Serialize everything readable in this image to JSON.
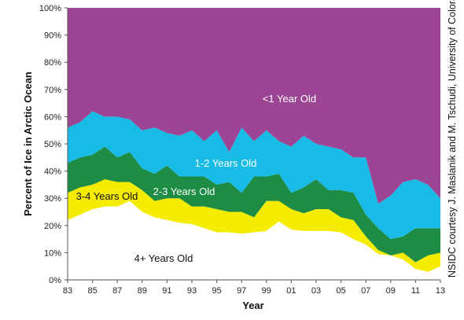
{
  "chart_data": {
    "type": "area",
    "stacked": true,
    "xlabel": "Year",
    "ylabel": "Percent of Ice in Arctic Ocean",
    "ylim": [
      0,
      100
    ],
    "xlim": [
      1983,
      2013
    ],
    "x_tick_labels": [
      "83",
      "85",
      "87",
      "89",
      "91",
      "93",
      "95",
      "97",
      "99",
      "01",
      "03",
      "05",
      "07",
      "09",
      "11",
      "13"
    ],
    "y_tick_labels": [
      "0%",
      "10%",
      "20%",
      "30%",
      "40%",
      "50%",
      "60%",
      "70%",
      "80%",
      "90%",
      "100%"
    ],
    "x": [
      1983,
      1984,
      1985,
      1986,
      1987,
      1988,
      1989,
      1990,
      1991,
      1992,
      1993,
      1994,
      1995,
      1996,
      1997,
      1998,
      1999,
      2000,
      2001,
      2002,
      2003,
      2004,
      2005,
      2006,
      2007,
      2008,
      2009,
      2010,
      2011,
      2012,
      2013
    ],
    "boundaries": {
      "4_plus_top": [
        22,
        24,
        26,
        27,
        27,
        29,
        25,
        23,
        22,
        21,
        20.5,
        19,
        17.5,
        17.5,
        17,
        17.5,
        18,
        21.5,
        18.5,
        18,
        18,
        18,
        17.5,
        15,
        13,
        9.5,
        9,
        7.5,
        4,
        3,
        5
      ],
      "3_4_top": [
        32,
        34,
        35,
        37,
        36,
        36,
        33,
        29,
        30,
        30,
        27,
        27,
        26,
        25,
        25,
        23,
        29,
        29,
        26,
        24.5,
        26,
        26,
        23,
        22,
        16,
        11,
        9,
        10,
        6.5,
        9,
        10
      ],
      "2_3_top": [
        43,
        45,
        46,
        49,
        45,
        47,
        41,
        39,
        42,
        38,
        38,
        38,
        35,
        36,
        32,
        38,
        38,
        39,
        32,
        34,
        37,
        33,
        33,
        32,
        24,
        19,
        15,
        16,
        19,
        19,
        19
      ],
      "1_2_top": [
        56,
        58,
        62,
        60,
        60,
        59,
        55,
        56,
        54,
        53,
        55,
        51,
        55,
        47,
        56,
        51,
        55,
        51,
        49,
        53,
        50,
        49,
        48,
        45,
        45,
        28,
        31,
        36,
        37,
        35,
        30
      ]
    },
    "series": [
      {
        "name": "4+ Years Old",
        "color": "#ffffff"
      },
      {
        "name": "3-4 Years Old",
        "color": "#f5ec00"
      },
      {
        "name": "2-3 Years Old",
        "color": "#1e8c44"
      },
      {
        "name": "1-2 Years Old",
        "color": "#18bbe5"
      },
      {
        "name": "<1 Year Old",
        "color": "#9b4594"
      }
    ],
    "annotation": "NSIDC courtesy J. Maslanik and M. Tschudi, University of Colorado"
  }
}
